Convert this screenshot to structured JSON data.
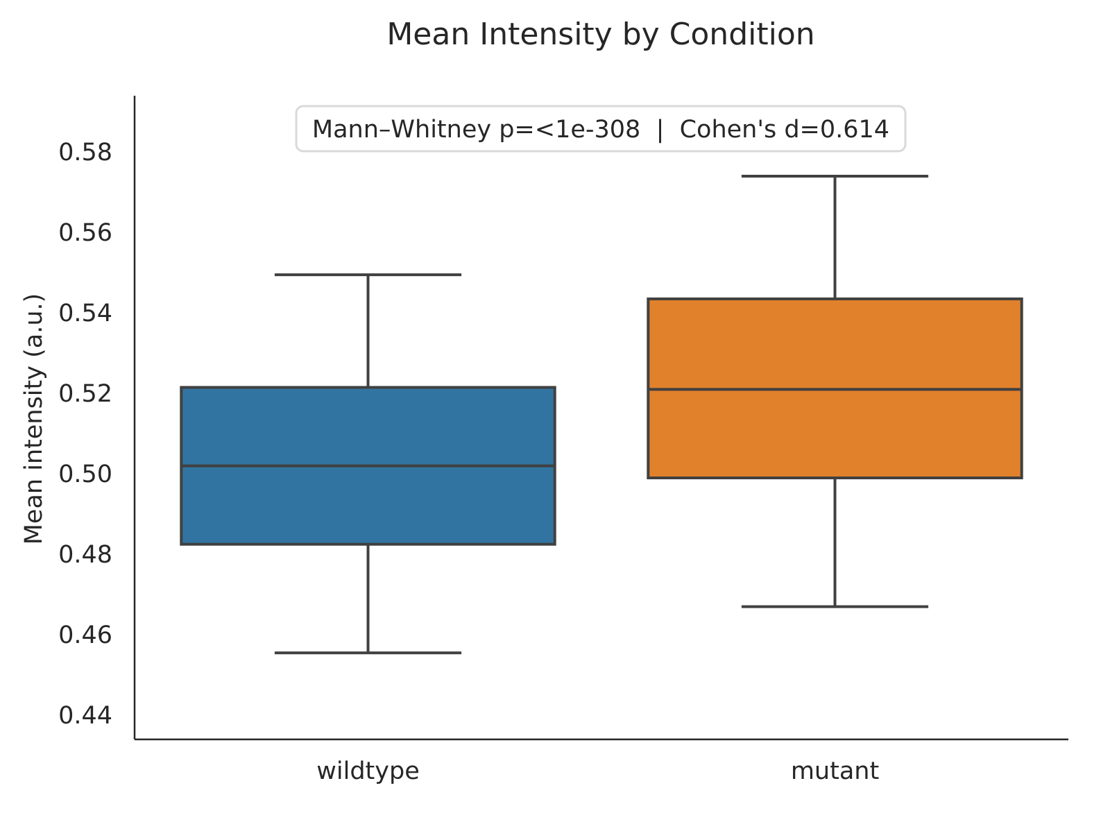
{
  "chart_data": {
    "type": "box",
    "title": "Mean Intensity by Condition",
    "xlabel": "",
    "ylabel": "Mean intensity (a.u.)",
    "ylim": [
      0.434,
      0.594
    ],
    "yticks": [
      0.44,
      0.46,
      0.48,
      0.5,
      0.52,
      0.54,
      0.56,
      0.58
    ],
    "ytick_labels": [
      "0.44",
      "0.46",
      "0.48",
      "0.50",
      "0.52",
      "0.54",
      "0.56",
      "0.58"
    ],
    "categories": [
      "wildtype",
      "mutant"
    ],
    "boxes": [
      {
        "category": "wildtype",
        "whisker_low": 0.4555,
        "q1": 0.4825,
        "median": 0.502,
        "q3": 0.5215,
        "whisker_high": 0.5495,
        "color": "#3274a1"
      },
      {
        "category": "mutant",
        "whisker_low": 0.467,
        "q1": 0.499,
        "median": 0.521,
        "q3": 0.5435,
        "whisker_high": 0.574,
        "color": "#e1812c"
      }
    ],
    "annotation": "Mann–Whitney p=<1e-308  |  Cohen's d=0.614",
    "grid": false,
    "legend": "none"
  }
}
